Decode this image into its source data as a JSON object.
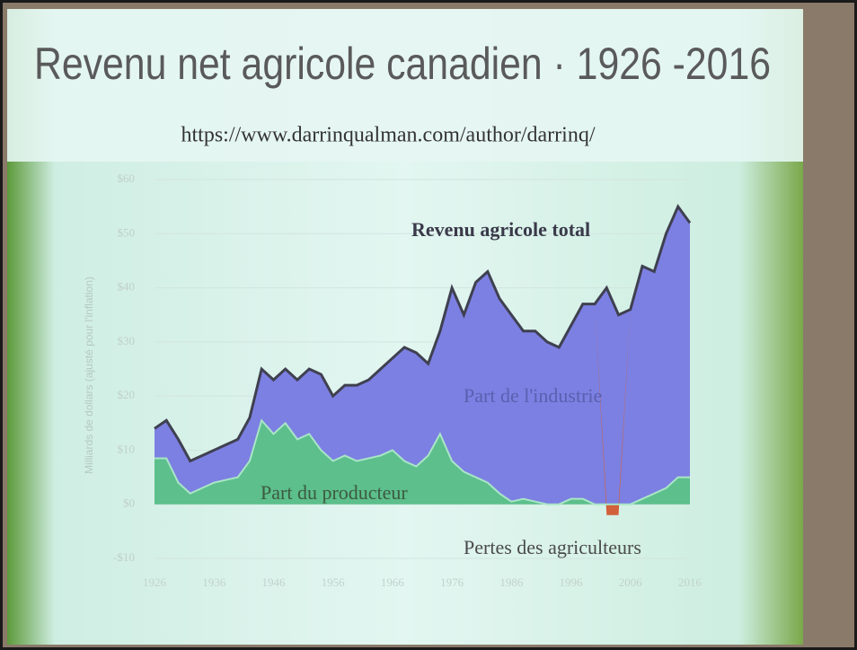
{
  "chart_data": {
    "type": "stacked-area",
    "title": "Revenu net agricole canadien · 1926 -2016",
    "subtitle": "https://www.darrinqualman.com/author/darrinq/",
    "y_label": "Milliards de dollars (ajusté pour l'inflation)",
    "annotation": "Revenu agricole total",
    "x": [
      1926,
      1928,
      1930,
      1932,
      1934,
      1936,
      1938,
      1940,
      1942,
      1944,
      1946,
      1948,
      1950,
      1952,
      1954,
      1956,
      1958,
      1960,
      1962,
      1964,
      1966,
      1968,
      1970,
      1972,
      1974,
      1976,
      1978,
      1980,
      1982,
      1984,
      1986,
      1988,
      1990,
      1992,
      1994,
      1996,
      1998,
      2000,
      2002,
      2004,
      2006,
      2008,
      2010,
      2012,
      2014,
      2016
    ],
    "series": [
      {
        "name": "Part du producteur",
        "color": "#5cbf8c",
        "values": [
          8.5,
          8.5,
          4,
          2,
          3,
          4,
          4.5,
          5,
          8,
          15.5,
          13,
          15,
          12,
          13,
          10,
          8,
          9,
          8,
          8.5,
          9,
          10,
          8,
          7,
          9,
          13,
          8,
          6,
          5,
          4,
          2,
          0.5,
          1,
          0.5,
          0,
          0,
          1,
          1,
          0,
          0,
          0,
          0,
          1,
          2,
          3,
          5,
          5
        ]
      },
      {
        "name": "Part de l'industrie",
        "color": "#7c80e2",
        "values": [
          5.5,
          7,
          8,
          6,
          6,
          6,
          6.5,
          7,
          8,
          9.5,
          10,
          10,
          11,
          12,
          14,
          12,
          13,
          14,
          14.5,
          16,
          17,
          21,
          21,
          17,
          19,
          32,
          29,
          36,
          39,
          36,
          34.5,
          31,
          31.5,
          30,
          29,
          32,
          36,
          37,
          40,
          35,
          36,
          43,
          41,
          47,
          50,
          47
        ]
      },
      {
        "name": "Pertes des agriculteurs",
        "color": "#d2603a",
        "values": [
          0,
          0,
          0,
          0,
          0,
          0,
          0,
          0,
          0,
          0,
          0,
          0,
          0,
          0,
          0,
          0,
          0,
          0,
          0,
          0,
          0,
          0,
          0,
          0,
          0,
          0,
          0,
          0,
          0,
          0,
          0,
          0,
          0,
          0,
          0,
          0,
          0,
          0,
          -2,
          -2,
          0,
          0,
          0,
          0,
          0,
          0
        ]
      }
    ],
    "xlim": [
      1926,
      2016
    ],
    "xticks": [
      1926,
      1936,
      1946,
      1956,
      1966,
      1976,
      1986,
      1996,
      2006,
      2016
    ],
    "ylim": [
      -10,
      60
    ],
    "yticks": [
      {
        "value": -10,
        "label": "-$10"
      },
      {
        "value": 0,
        "label": "$0"
      },
      {
        "value": 10,
        "label": "$10"
      },
      {
        "value": 20,
        "label": "$20"
      },
      {
        "value": 30,
        "label": "$30"
      },
      {
        "value": 40,
        "label": "$40"
      },
      {
        "value": 50,
        "label": "$50"
      },
      {
        "value": 60,
        "label": "$60"
      }
    ],
    "grid": true
  }
}
